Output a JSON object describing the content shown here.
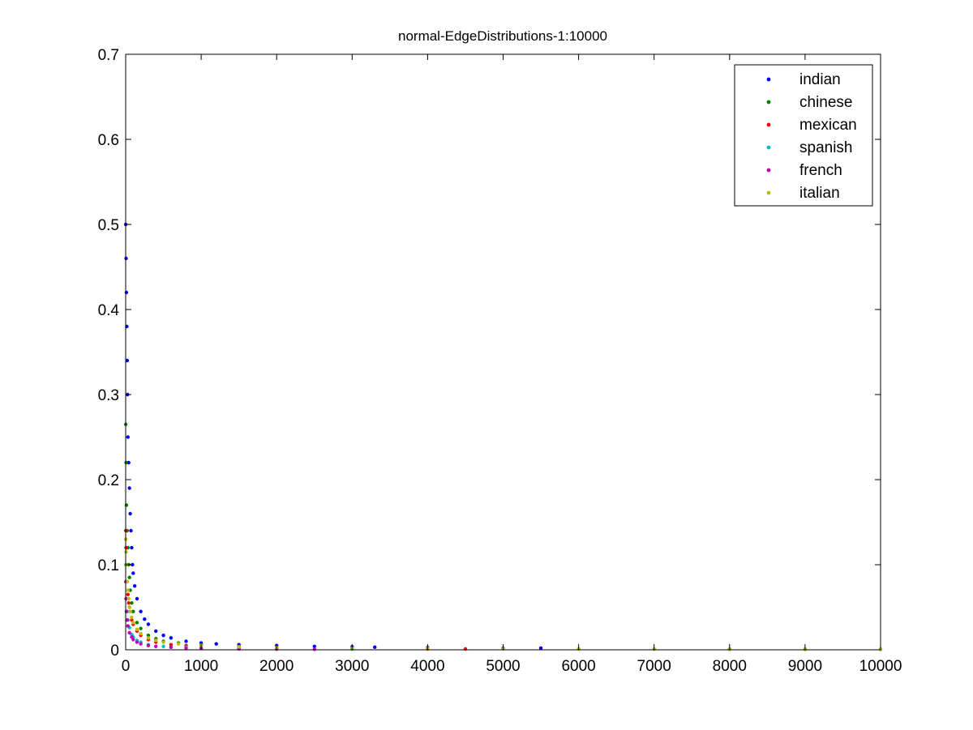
{
  "chart_data": {
    "type": "scatter",
    "title": "normal-EdgeDistributions-1:10000",
    "xlabel": "",
    "ylabel": "",
    "xlim": [
      0,
      10000
    ],
    "ylim": [
      0,
      0.7
    ],
    "x_ticks": [
      "0",
      "1000",
      "2000",
      "3000",
      "4000",
      "5000",
      "6000",
      "7000",
      "8000",
      "9000",
      "10000"
    ],
    "y_ticks": [
      "0",
      "0.1",
      "0.2",
      "0.3",
      "0.4",
      "0.5",
      "0.6",
      "0.7"
    ],
    "grid": false,
    "legend_position": "top-right",
    "marker": "dot",
    "series": [
      {
        "name": "indian",
        "color": "#0000ff",
        "x": [
          1,
          5,
          10,
          15,
          20,
          25,
          30,
          40,
          50,
          60,
          70,
          80,
          90,
          100,
          120,
          150,
          200,
          250,
          300,
          400,
          500,
          600,
          800,
          1000,
          1200,
          1500,
          2000,
          2500,
          3000,
          3300,
          4000,
          5000,
          5500
        ],
        "y": [
          0.5,
          0.46,
          0.42,
          0.38,
          0.34,
          0.3,
          0.25,
          0.22,
          0.19,
          0.16,
          0.14,
          0.12,
          0.1,
          0.09,
          0.075,
          0.06,
          0.045,
          0.036,
          0.03,
          0.022,
          0.017,
          0.014,
          0.01,
          0.008,
          0.007,
          0.006,
          0.005,
          0.004,
          0.0035,
          0.003,
          0.0025,
          0.002,
          0.002
        ]
      },
      {
        "name": "chinese",
        "color": "#008000",
        "x": [
          1,
          5,
          10,
          20,
          30,
          40,
          50,
          60,
          80,
          100,
          150,
          200,
          300,
          400,
          500,
          700,
          1000,
          1500,
          2000,
          3000,
          4000,
          5000,
          6000,
          7000,
          8000,
          9000,
          10000
        ],
        "y": [
          0.265,
          0.22,
          0.17,
          0.14,
          0.12,
          0.1,
          0.085,
          0.07,
          0.055,
          0.045,
          0.032,
          0.025,
          0.017,
          0.013,
          0.01,
          0.008,
          0.006,
          0.004,
          0.003,
          0.002,
          0.0015,
          0.0012,
          0.001,
          0.0009,
          0.0008,
          0.0007,
          0.0006
        ]
      },
      {
        "name": "mexican",
        "color": "#ff0000",
        "x": [
          1,
          5,
          10,
          20,
          30,
          40,
          50,
          60,
          80,
          100,
          150,
          200,
          300,
          400,
          600,
          800,
          1000,
          1500,
          2000,
          3000,
          4000,
          4500
        ],
        "y": [
          0.14,
          0.12,
          0.1,
          0.08,
          0.065,
          0.055,
          0.05,
          0.045,
          0.035,
          0.03,
          0.022,
          0.017,
          0.012,
          0.009,
          0.006,
          0.005,
          0.004,
          0.003,
          0.002,
          0.0015,
          0.001,
          0.001
        ]
      },
      {
        "name": "spanish",
        "color": "#00bfbf",
        "x": [
          1,
          5,
          10,
          20,
          30,
          50,
          80,
          100,
          150,
          200,
          300,
          500,
          800,
          1000,
          1500,
          2000,
          3000
        ],
        "y": [
          0.1,
          0.08,
          0.06,
          0.045,
          0.035,
          0.026,
          0.018,
          0.015,
          0.011,
          0.009,
          0.006,
          0.004,
          0.003,
          0.002,
          0.0015,
          0.001,
          0.0008
        ]
      },
      {
        "name": "french",
        "color": "#bf00bf",
        "x": [
          1,
          5,
          10,
          20,
          30,
          50,
          80,
          100,
          150,
          200,
          300,
          400,
          600,
          800,
          1000,
          1500,
          2000,
          2500
        ],
        "y": [
          0.08,
          0.06,
          0.045,
          0.035,
          0.028,
          0.02,
          0.015,
          0.012,
          0.009,
          0.007,
          0.005,
          0.004,
          0.003,
          0.002,
          0.0015,
          0.001,
          0.0008,
          0.0006
        ]
      },
      {
        "name": "italian",
        "color": "#bfbf00",
        "x": [
          1,
          5,
          10,
          20,
          30,
          40,
          50,
          60,
          80,
          100,
          150,
          200,
          300,
          400,
          500,
          700,
          1000,
          1500,
          2000,
          3000,
          4000,
          5000,
          6000,
          7000,
          8000,
          9000,
          10000
        ],
        "y": [
          0.13,
          0.115,
          0.1,
          0.08,
          0.07,
          0.06,
          0.05,
          0.045,
          0.038,
          0.032,
          0.024,
          0.019,
          0.014,
          0.011,
          0.009,
          0.007,
          0.005,
          0.0035,
          0.0028,
          0.002,
          0.0016,
          0.0014,
          0.0012,
          0.0011,
          0.001,
          0.001,
          0.001
        ]
      }
    ]
  }
}
